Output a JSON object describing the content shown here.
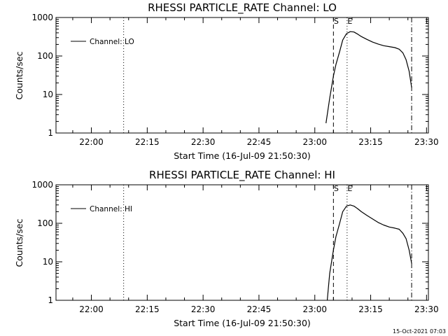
{
  "footer_timestamp": "15-Oct-2021 07:03",
  "chart_data": [
    {
      "type": "line",
      "title": "RHESSI PARTICLE_RATE Channel: LO",
      "xlabel": "Start Time (16-Jul-09 21:50:30)",
      "ylabel": "Counts/sec",
      "yscale": "log",
      "ylim": [
        1,
        1000
      ],
      "xlim_minutes_after_start": [
        0,
        100
      ],
      "x_tick_labels": [
        "22:00",
        "22:15",
        "22:30",
        "22:45",
        "23:00",
        "23:15",
        "23:30"
      ],
      "y_tick_labels": [
        "1",
        "10",
        "100",
        "1000"
      ],
      "legend": {
        "position": "top-left",
        "entries": [
          "Channel: LO"
        ]
      },
      "markers": [
        {
          "label": "",
          "time": "22:08:40",
          "style": "dotted"
        },
        {
          "label": "S",
          "time": "23:05:00",
          "style": "dashed"
        },
        {
          "label": "E",
          "time": "23:08:40",
          "style": "dotted"
        },
        {
          "label": "",
          "time": "23:26:00",
          "style": "dash-dot"
        }
      ],
      "series": [
        {
          "name": "Channel: LO",
          "x": [
            "23:03:00",
            "23:04:00",
            "23:05:00",
            "23:05:40",
            "23:06:40",
            "23:07:30",
            "23:08:30",
            "23:09:30",
            "23:10:30",
            "23:11:30",
            "23:12:30",
            "23:14:00",
            "23:15:30",
            "23:17:00",
            "23:18:30",
            "23:20:00",
            "23:21:30",
            "23:22:40",
            "23:23:40",
            "23:24:30",
            "23:25:20",
            "23:26:00"
          ],
          "values": [
            1.8,
            8,
            30,
            60,
            130,
            260,
            380,
            430,
            420,
            370,
            320,
            270,
            230,
            205,
            185,
            175,
            165,
            150,
            120,
            80,
            40,
            15
          ]
        }
      ]
    },
    {
      "type": "line",
      "title": "RHESSI PARTICLE_RATE Channel: HI",
      "xlabel": "Start Time (16-Jul-09 21:50:30)",
      "ylabel": "Counts/sec",
      "yscale": "log",
      "ylim": [
        1,
        1000
      ],
      "xlim_minutes_after_start": [
        0,
        100
      ],
      "x_tick_labels": [
        "22:00",
        "22:15",
        "22:30",
        "22:45",
        "23:00",
        "23:15",
        "23:30"
      ],
      "y_tick_labels": [
        "1",
        "10",
        "100",
        "1000"
      ],
      "legend": {
        "position": "top-left",
        "entries": [
          "Channel: HI"
        ]
      },
      "markers": [
        {
          "label": "",
          "time": "22:08:40",
          "style": "dotted"
        },
        {
          "label": "S",
          "time": "23:05:00",
          "style": "dashed"
        },
        {
          "label": "E",
          "time": "23:08:40",
          "style": "dotted"
        },
        {
          "label": "",
          "time": "23:26:00",
          "style": "dash-dot"
        }
      ],
      "series": [
        {
          "name": "Channel: HI",
          "x": [
            "23:03:20",
            "23:04:00",
            "23:05:00",
            "23:05:40",
            "23:06:40",
            "23:07:30",
            "23:08:30",
            "23:09:30",
            "23:10:30",
            "23:11:30",
            "23:12:30",
            "23:14:00",
            "23:15:30",
            "23:17:00",
            "23:18:30",
            "23:20:00",
            "23:21:30",
            "23:22:40",
            "23:23:40",
            "23:24:30",
            "23:25:20",
            "23:26:00"
          ],
          "values": [
            1,
            5,
            20,
            45,
            100,
            200,
            280,
            300,
            280,
            240,
            200,
            160,
            130,
            105,
            90,
            80,
            75,
            70,
            55,
            40,
            20,
            9
          ]
        }
      ]
    }
  ]
}
